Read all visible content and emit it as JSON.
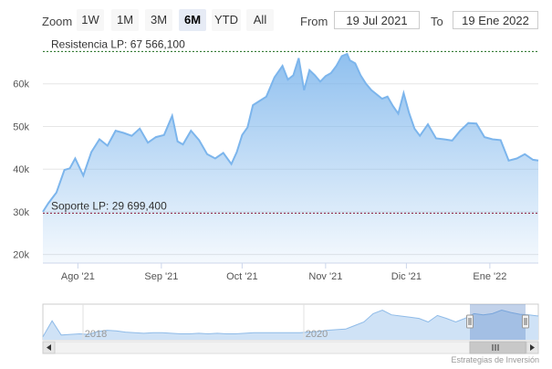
{
  "toolbar": {
    "zoom_label": "Zoom",
    "buttons": [
      "1W",
      "1M",
      "3M",
      "6M",
      "YTD",
      "All"
    ],
    "active_button": "6M",
    "from_label": "From",
    "from_value": "19 Jul 2021",
    "to_label": "To",
    "to_value": "19 Ene 2022"
  },
  "colors": {
    "series": "#7cb5ec",
    "resistance": "#1a6b1a",
    "support": "#8b1a3a",
    "grid": "#e6e6e6",
    "navigator_mask": "#4f7fc4"
  },
  "chart_data": {
    "type": "area",
    "ylim": [
      18000,
      70000
    ],
    "y_ticks": [
      20000,
      30000,
      40000,
      50000,
      60000
    ],
    "y_tick_labels": [
      "20k",
      "30k",
      "40k",
      "50k",
      "60k"
    ],
    "x_tick_labels": [
      "Ago '21",
      "Sep '21",
      "Oct '21",
      "Nov '21",
      "Dic '21",
      "Ene '22"
    ],
    "x_tick_dates": [
      "2021-08-01",
      "2021-09-01",
      "2021-10-01",
      "2021-11-01",
      "2021-12-01",
      "2022-01-01"
    ],
    "x_range": [
      "2021-07-19",
      "2022-01-19"
    ],
    "series": [
      {
        "x": [
          "2021-07-19",
          "2021-07-21",
          "2021-07-24",
          "2021-07-27",
          "2021-07-29",
          "2021-07-31",
          "2021-08-03",
          "2021-08-06",
          "2021-08-09",
          "2021-08-12",
          "2021-08-15",
          "2021-08-18",
          "2021-08-21",
          "2021-08-24",
          "2021-08-27",
          "2021-08-30",
          "2021-09-02",
          "2021-09-05",
          "2021-09-07",
          "2021-09-09",
          "2021-09-12",
          "2021-09-15",
          "2021-09-18",
          "2021-09-21",
          "2021-09-24",
          "2021-09-27",
          "2021-09-29",
          "2021-10-01",
          "2021-10-03",
          "2021-10-05",
          "2021-10-07",
          "2021-10-10",
          "2021-10-13",
          "2021-10-16",
          "2021-10-18",
          "2021-10-20",
          "2021-10-22",
          "2021-10-24",
          "2021-10-26",
          "2021-10-28",
          "2021-10-30",
          "2021-11-01",
          "2021-11-03",
          "2021-11-05",
          "2021-11-07",
          "2021-11-09",
          "2021-11-10",
          "2021-11-12",
          "2021-11-14",
          "2021-11-16",
          "2021-11-18",
          "2021-11-20",
          "2021-11-22",
          "2021-11-24",
          "2021-11-26",
          "2021-11-28",
          "2021-11-30",
          "2021-12-02",
          "2021-12-04",
          "2021-12-06",
          "2021-12-09",
          "2021-12-12",
          "2021-12-15",
          "2021-12-18",
          "2021-12-21",
          "2021-12-24",
          "2021-12-27",
          "2021-12-30",
          "2022-01-02",
          "2022-01-05",
          "2022-01-08",
          "2022-01-11",
          "2022-01-14",
          "2022-01-17",
          "2022-01-19"
        ],
        "values": [
          30000,
          32000,
          34500,
          39800,
          40200,
          42500,
          38500,
          44000,
          47000,
          45500,
          49000,
          48500,
          47800,
          49500,
          46200,
          47500,
          48000,
          52500,
          46500,
          45800,
          49000,
          46800,
          43500,
          42500,
          43800,
          41200,
          44000,
          48000,
          49800,
          55000,
          55800,
          57000,
          61500,
          64200,
          61000,
          62000,
          66000,
          58500,
          63200,
          62000,
          60500,
          61800,
          62500,
          64200,
          66500,
          67000,
          65500,
          64800,
          62000,
          60000,
          58500,
          57500,
          56500,
          57000,
          54800,
          53000,
          57800,
          53200,
          49500,
          47800,
          50500,
          47200,
          47000,
          46700,
          49000,
          50800,
          50700,
          47500,
          47000,
          46800,
          42000,
          42500,
          43500,
          42200,
          42000
        ]
      }
    ],
    "resistance": {
      "value": 67566.1,
      "label": "Resistencia LP: 67 566,100"
    },
    "support": {
      "value": 29699.4,
      "label": "Soporte LP: 29 699,400"
    }
  },
  "navigator": {
    "labels": [
      "2018",
      "2020"
    ],
    "values": [
      5,
      32,
      8,
      9,
      10,
      9,
      14,
      16,
      15,
      13,
      12,
      11,
      12,
      12,
      11,
      10,
      10,
      11,
      10,
      11,
      10,
      10,
      11,
      12,
      12,
      12,
      12,
      12,
      12,
      13,
      14,
      16,
      17,
      18,
      24,
      30,
      44,
      50,
      42,
      40,
      38,
      36,
      30,
      41,
      36,
      30,
      36,
      44,
      42,
      44,
      50,
      46,
      43,
      42,
      40
    ]
  },
  "credits": "Estrategias de Inversión"
}
